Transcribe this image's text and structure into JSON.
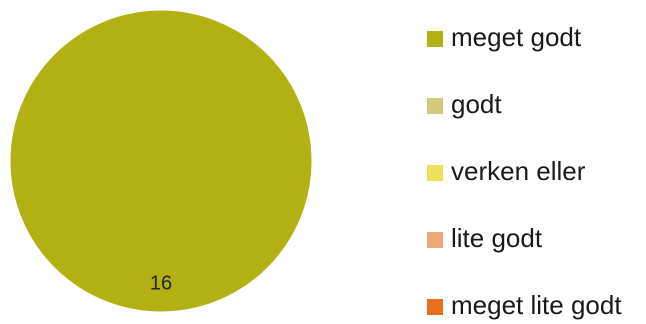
{
  "chart_data": {
    "type": "pie",
    "categories": [
      "meget godt",
      "godt",
      "verken eller",
      "lite godt",
      "meget lite godt"
    ],
    "values": [
      16,
      0,
      0,
      0,
      0
    ],
    "data_labels": [
      "16",
      "",
      "",
      "",
      ""
    ],
    "colors": [
      "#b3b014",
      "#d1ca7c",
      "#ede05a",
      "#f0a878",
      "#e8701c"
    ],
    "legend_position": "right",
    "title": ""
  }
}
